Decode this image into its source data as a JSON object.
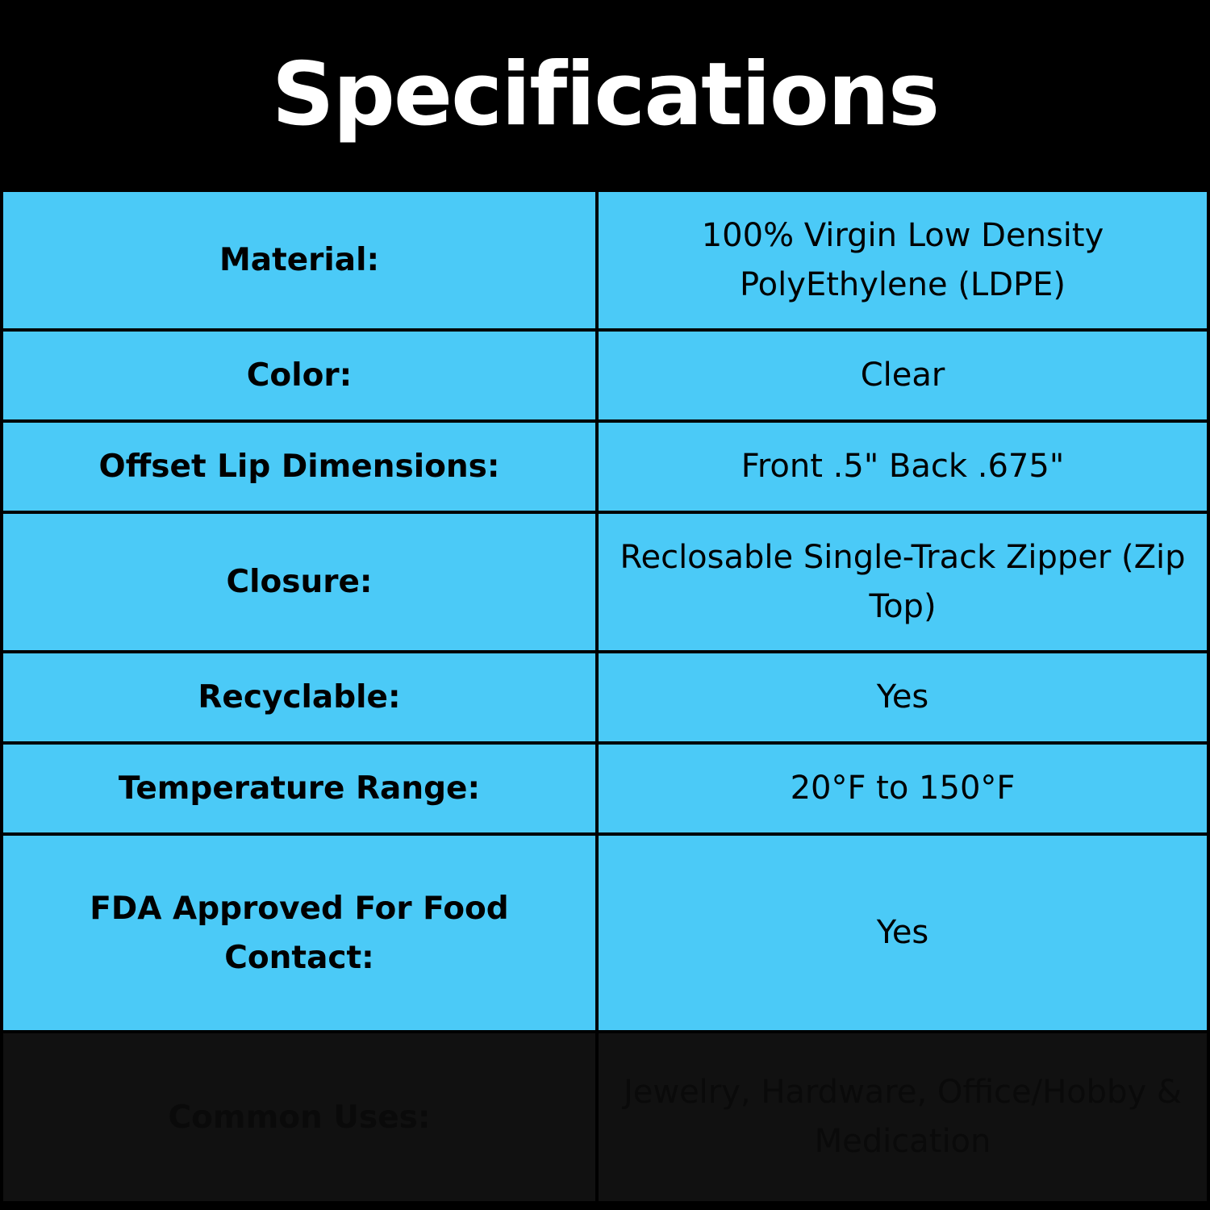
{
  "header": {
    "title": "Specifications"
  },
  "table": {
    "rows": [
      [
        "Material:",
        "100% Virgin Low Density PolyEthylene (LDPE)"
      ],
      [
        "Color:",
        "Clear"
      ],
      [
        "Offset Lip Dimensions:",
        "Front .5\" Back .675\""
      ],
      [
        "Closure:",
        "Reclosable Single-Track Zipper (Zip Top)"
      ],
      [
        "Recyclable:",
        "Yes"
      ],
      [
        "Temperature Range:",
        "20°F to 150°F"
      ],
      [
        "FDA Approved For Food Contact:",
        "Yes"
      ],
      [
        "Common Uses:",
        "Jewelry, Hardware, Office/Hobby & Medication"
      ]
    ]
  }
}
